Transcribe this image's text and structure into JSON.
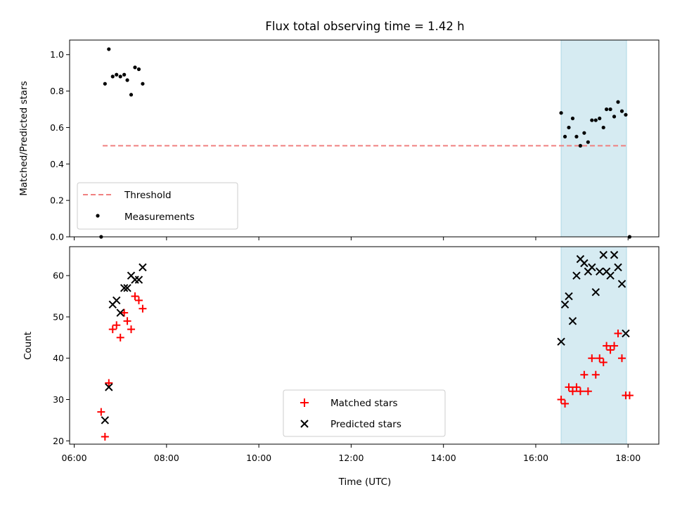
{
  "title": "Flux total observing time = 1.42 h",
  "chart_data": [
    {
      "type": "scatter",
      "panel": "top",
      "ylabel": "Matched/Predicted stars",
      "xlabel": "",
      "ylim": [
        0.0,
        1.08
      ],
      "xlim": [
        "06:00",
        "18:40"
      ],
      "yticks": [
        "0.0",
        "0.2",
        "0.4",
        "0.6",
        "0.8",
        "1.0"
      ],
      "shaded_region": {
        "start": "16:33",
        "end": "17:58",
        "color": "#add8e6"
      },
      "legend_position": "lower-left",
      "series": [
        {
          "name": "Threshold",
          "kind": "dashed-line",
          "color": "#f08080",
          "points": [
            {
              "x": "06:37",
              "y": 0.5
            },
            {
              "x": "18:00",
              "y": 0.5
            }
          ]
        },
        {
          "name": "Measurements",
          "kind": "dots",
          "color": "#000000",
          "points": [
            {
              "x": "06:35",
              "y": 0.0
            },
            {
              "x": "06:40",
              "y": 0.84
            },
            {
              "x": "06:45",
              "y": 1.03
            },
            {
              "x": "06:50",
              "y": 0.88
            },
            {
              "x": "06:55",
              "y": 0.89
            },
            {
              "x": "07:00",
              "y": 0.88
            },
            {
              "x": "07:05",
              "y": 0.89
            },
            {
              "x": "07:09",
              "y": 0.86
            },
            {
              "x": "07:14",
              "y": 0.78
            },
            {
              "x": "07:19",
              "y": 0.93
            },
            {
              "x": "07:24",
              "y": 0.92
            },
            {
              "x": "07:29",
              "y": 0.84
            },
            {
              "x": "16:33",
              "y": 0.68
            },
            {
              "x": "16:38",
              "y": 0.55
            },
            {
              "x": "16:43",
              "y": 0.6
            },
            {
              "x": "16:48",
              "y": 0.65
            },
            {
              "x": "16:53",
              "y": 0.55
            },
            {
              "x": "16:58",
              "y": 0.5
            },
            {
              "x": "17:03",
              "y": 0.57
            },
            {
              "x": "17:08",
              "y": 0.52
            },
            {
              "x": "17:13",
              "y": 0.64
            },
            {
              "x": "17:18",
              "y": 0.64
            },
            {
              "x": "17:23",
              "y": 0.65
            },
            {
              "x": "17:28",
              "y": 0.6
            },
            {
              "x": "17:32",
              "y": 0.7
            },
            {
              "x": "17:37",
              "y": 0.7
            },
            {
              "x": "17:42",
              "y": 0.66
            },
            {
              "x": "17:47",
              "y": 0.74
            },
            {
              "x": "17:52",
              "y": 0.69
            },
            {
              "x": "17:57",
              "y": 0.67
            },
            {
              "x": "18:02",
              "y": 0.0
            }
          ]
        }
      ]
    },
    {
      "type": "scatter",
      "panel": "bottom",
      "ylabel": "Count",
      "xlabel": "Time (UTC)",
      "ylim": [
        19.2,
        67
      ],
      "xlim": [
        "06:00",
        "18:40"
      ],
      "xticks": [
        "06:00",
        "08:00",
        "10:00",
        "12:00",
        "14:00",
        "16:00",
        "18:00"
      ],
      "yticks": [
        "20",
        "30",
        "40",
        "50",
        "60"
      ],
      "shaded_region": {
        "start": "16:33",
        "end": "17:58",
        "color": "#add8e6"
      },
      "legend_position": "lower-center",
      "series": [
        {
          "name": "Matched stars",
          "marker": "plus",
          "color": "#ff0000",
          "points": [
            {
              "x": "06:35",
              "y": 27
            },
            {
              "x": "06:40",
              "y": 21
            },
            {
              "x": "06:45",
              "y": 34
            },
            {
              "x": "06:50",
              "y": 47
            },
            {
              "x": "06:55",
              "y": 48
            },
            {
              "x": "07:00",
              "y": 45
            },
            {
              "x": "07:05",
              "y": 51
            },
            {
              "x": "07:09",
              "y": 49
            },
            {
              "x": "07:14",
              "y": 47
            },
            {
              "x": "07:19",
              "y": 55
            },
            {
              "x": "07:24",
              "y": 54
            },
            {
              "x": "07:29",
              "y": 52
            },
            {
              "x": "16:33",
              "y": 30
            },
            {
              "x": "16:38",
              "y": 29
            },
            {
              "x": "16:43",
              "y": 33
            },
            {
              "x": "16:48",
              "y": 32
            },
            {
              "x": "16:53",
              "y": 33
            },
            {
              "x": "16:58",
              "y": 32
            },
            {
              "x": "17:03",
              "y": 36
            },
            {
              "x": "17:08",
              "y": 32
            },
            {
              "x": "17:13",
              "y": 40
            },
            {
              "x": "17:18",
              "y": 36
            },
            {
              "x": "17:23",
              "y": 40
            },
            {
              "x": "17:28",
              "y": 39
            },
            {
              "x": "17:32",
              "y": 43
            },
            {
              "x": "17:37",
              "y": 42
            },
            {
              "x": "17:42",
              "y": 43
            },
            {
              "x": "17:47",
              "y": 46
            },
            {
              "x": "17:52",
              "y": 40
            },
            {
              "x": "17:57",
              "y": 31
            },
            {
              "x": "18:02",
              "y": 31
            }
          ]
        },
        {
          "name": "Predicted stars",
          "marker": "x",
          "color": "#000000",
          "points": [
            {
              "x": "06:40",
              "y": 25
            },
            {
              "x": "06:45",
              "y": 33
            },
            {
              "x": "06:50",
              "y": 53
            },
            {
              "x": "06:55",
              "y": 54
            },
            {
              "x": "07:00",
              "y": 51
            },
            {
              "x": "07:05",
              "y": 57
            },
            {
              "x": "07:09",
              "y": 57
            },
            {
              "x": "07:14",
              "y": 60
            },
            {
              "x": "07:19",
              "y": 59
            },
            {
              "x": "07:24",
              "y": 59
            },
            {
              "x": "07:29",
              "y": 62
            },
            {
              "x": "16:33",
              "y": 44
            },
            {
              "x": "16:38",
              "y": 53
            },
            {
              "x": "16:43",
              "y": 55
            },
            {
              "x": "16:48",
              "y": 49
            },
            {
              "x": "16:53",
              "y": 60
            },
            {
              "x": "16:58",
              "y": 64
            },
            {
              "x": "17:03",
              "y": 63
            },
            {
              "x": "17:08",
              "y": 61
            },
            {
              "x": "17:13",
              "y": 62
            },
            {
              "x": "17:18",
              "y": 56
            },
            {
              "x": "17:23",
              "y": 61
            },
            {
              "x": "17:28",
              "y": 65
            },
            {
              "x": "17:32",
              "y": 61
            },
            {
              "x": "17:37",
              "y": 60
            },
            {
              "x": "17:42",
              "y": 65
            },
            {
              "x": "17:47",
              "y": 62
            },
            {
              "x": "17:52",
              "y": 58
            },
            {
              "x": "17:57",
              "y": 46
            }
          ]
        }
      ]
    }
  ]
}
